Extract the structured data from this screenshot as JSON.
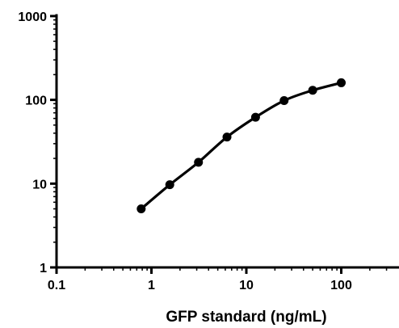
{
  "chart_data": {
    "type": "line",
    "title": "",
    "xlabel": "GFP standard (ng/mL)",
    "ylabel": "",
    "x_scale": "log",
    "y_scale": "log",
    "xlim": [
      0.1,
      500
    ],
    "ylim": [
      1,
      1000
    ],
    "x_ticks": [
      0.1,
      1,
      10,
      100
    ],
    "x_tick_labels": [
      "0.1",
      "1",
      "10",
      "100"
    ],
    "y_ticks": [
      1,
      10,
      100,
      1000
    ],
    "y_tick_labels": [
      "1",
      "10",
      "100",
      "1000"
    ],
    "grid": false,
    "legend": "none",
    "series": [
      {
        "x": [
          0.78,
          1.56,
          3.13,
          6.25,
          12.5,
          25,
          50,
          100
        ],
        "y": [
          5,
          9.7,
          18,
          36,
          62,
          98,
          130,
          160
        ],
        "color": "#000000",
        "marker": "circle"
      }
    ]
  }
}
